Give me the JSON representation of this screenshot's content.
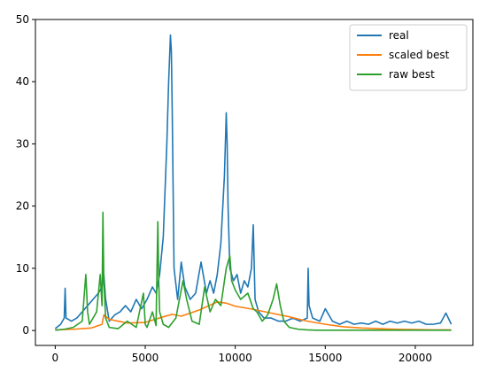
{
  "chart_data": {
    "type": "line",
    "title": "",
    "xlabel": "",
    "ylabel": "",
    "xlim": [
      -1100,
      23200
    ],
    "ylim": [
      -2.4,
      50
    ],
    "x_ticks": [
      0,
      5000,
      10000,
      15000,
      20000
    ],
    "x_tick_labels": [
      "0",
      "5000",
      "10000",
      "15000",
      "20000"
    ],
    "y_ticks": [
      0,
      10,
      20,
      30,
      40,
      50
    ],
    "y_tick_labels": [
      "0",
      "10",
      "20",
      "30",
      "40",
      "50"
    ],
    "grid": false,
    "legend_position": "upper-right",
    "series": [
      {
        "name": "real",
        "color": "#1f77b4",
        "x": [
          0,
          300,
          500,
          550,
          600,
          900,
          1200,
          1500,
          1800,
          2100,
          2400,
          2600,
          2700,
          2800,
          3000,
          3300,
          3600,
          3900,
          4200,
          4500,
          4800,
          5100,
          5400,
          5600,
          5800,
          6000,
          6200,
          6300,
          6400,
          6450,
          6500,
          6600,
          6800,
          7000,
          7200,
          7500,
          7800,
          8100,
          8400,
          8600,
          8800,
          9000,
          9200,
          9400,
          9500,
          9550,
          9600,
          9700,
          9900,
          10100,
          10300,
          10500,
          10700,
          10900,
          11000,
          11100,
          11300,
          11600,
          12000,
          12400,
          12800,
          13200,
          13600,
          14000,
          14050,
          14100,
          14300,
          14700,
          15000,
          15400,
          15800,
          16200,
          16600,
          17000,
          17400,
          17800,
          18200,
          18600,
          19000,
          19400,
          19800,
          20200,
          20600,
          21000,
          21400,
          21700,
          22000
        ],
        "y": [
          0.3,
          1,
          2,
          6.8,
          2,
          1.5,
          2,
          3,
          4,
          5,
          6,
          7,
          9,
          5,
          1.5,
          2.5,
          3,
          4,
          3,
          5,
          3.5,
          5,
          7,
          6,
          9,
          15,
          30,
          40,
          47.5,
          45,
          35,
          10,
          5,
          11,
          7,
          5,
          6,
          11,
          6,
          8,
          6,
          9,
          14,
          25,
          35,
          30,
          20,
          10,
          8,
          9,
          6,
          8,
          7,
          10,
          17,
          5,
          3,
          2,
          2,
          1.5,
          1.5,
          2,
          1.5,
          2,
          10,
          4,
          2,
          1.5,
          3.5,
          1.5,
          1,
          1.5,
          1,
          1.2,
          1,
          1.5,
          1,
          1.5,
          1.2,
          1.5,
          1.2,
          1.5,
          1,
          1,
          1.2,
          2.8,
          1
        ]
      },
      {
        "name": "scaled best",
        "color": "#ff7f0e",
        "x": [
          0,
          1000,
          2000,
          2600,
          2700,
          3000,
          4000,
          5000,
          6000,
          6500,
          7000,
          8000,
          9000,
          9500,
          10000,
          11000,
          12000,
          13000,
          14000,
          15000,
          16000,
          17000,
          18000,
          19000,
          20000,
          21000,
          22000
        ],
        "y": [
          0.1,
          0.2,
          0.4,
          1,
          2.5,
          1.8,
          1.2,
          1.3,
          2.2,
          2.6,
          2.3,
          3.3,
          4.6,
          4.4,
          3.9,
          3.4,
          2.8,
          2.2,
          1.5,
          1,
          0.6,
          0.4,
          0.3,
          0.2,
          0.15,
          0.1,
          0.1
        ]
      },
      {
        "name": "raw best",
        "color": "#2ca02c",
        "x": [
          0,
          500,
          1000,
          1500,
          1700,
          1800,
          1900,
          2100,
          2300,
          2500,
          2600,
          2650,
          2700,
          2800,
          3000,
          3500,
          4000,
          4500,
          4900,
          5000,
          5100,
          5400,
          5600,
          5700,
          5750,
          5800,
          6000,
          6300,
          6700,
          7100,
          7300,
          7600,
          8000,
          8300,
          8600,
          8900,
          9200,
          9500,
          9700,
          9800,
          10000,
          10300,
          10700,
          11000,
          11200,
          11500,
          11800,
          12100,
          12300,
          12500,
          12700,
          13000,
          13500,
          14000,
          14500,
          15000,
          16000,
          17000,
          18000,
          19000,
          20000,
          21000,
          22000
        ],
        "y": [
          0.05,
          0.2,
          0.5,
          1.5,
          9,
          3,
          1,
          2,
          3,
          9,
          4,
          19,
          8,
          2,
          0.5,
          0.3,
          1.5,
          0.5,
          6,
          1,
          0.5,
          3,
          0.8,
          17.5,
          8,
          3,
          1,
          0.5,
          2,
          8,
          5,
          1.5,
          1,
          7,
          3,
          5,
          4,
          10,
          12,
          8,
          6.5,
          5,
          6,
          3.5,
          3,
          1.5,
          2.5,
          5,
          7.5,
          4,
          1.5,
          0.5,
          0.2,
          0.1,
          0.05,
          0.05,
          0.05,
          0.05,
          0.05,
          0.05,
          0.05,
          0.05,
          0.05
        ]
      }
    ]
  }
}
